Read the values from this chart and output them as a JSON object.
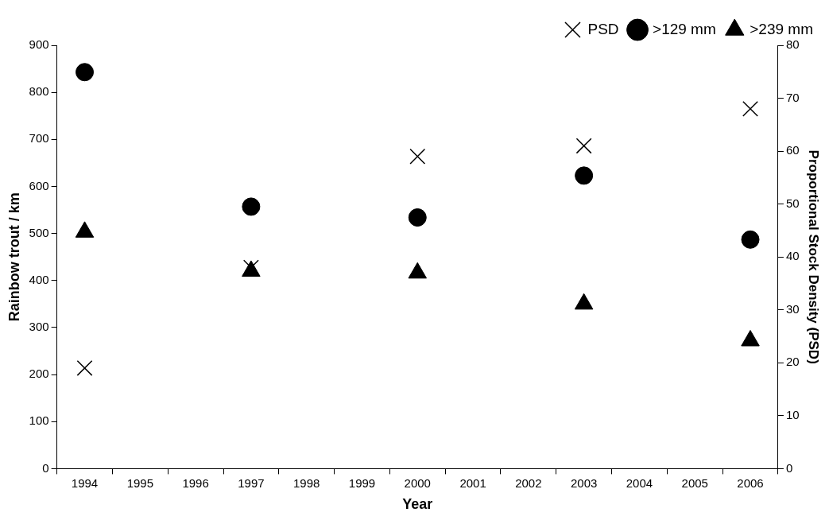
{
  "chart_data": {
    "type": "scatter",
    "xlabel": "Year",
    "ylabel": "Rainbow trout / km",
    "y2label": "Proportional Stock Density (PSD)",
    "categories": [
      "1994",
      "1995",
      "1996",
      "1997",
      "1998",
      "1999",
      "2000",
      "2001",
      "2002",
      "2003",
      "2004",
      "2005",
      "2006"
    ],
    "series": [
      {
        "name": ">129 mm",
        "color": "#000000",
        "marker": "circle",
        "values": [
          843,
          null,
          null,
          557,
          null,
          null,
          534,
          null,
          null,
          623,
          null,
          null,
          487
        ]
      },
      {
        "name": ">239 mm",
        "color": "#000000",
        "marker": "triangle",
        "values": [
          503,
          null,
          null,
          420,
          null,
          null,
          416,
          null,
          null,
          350,
          null,
          null,
          272
        ]
      },
      {
        "name": "PSD",
        "color": "#000000",
        "marker": "cross",
        "axis": "y2",
        "values": [
          19,
          null,
          null,
          38,
          null,
          null,
          59,
          null,
          null,
          61,
          null,
          null,
          68
        ]
      }
    ],
    "ylim": [
      0,
      900
    ],
    "yticks": [
      0,
      100,
      200,
      300,
      400,
      500,
      600,
      700,
      800,
      900
    ],
    "y2lim": [
      0,
      80
    ],
    "y2ticks": [
      0,
      10,
      20,
      30,
      40,
      50,
      60,
      70,
      80
    ],
    "grid": false,
    "legend": "top right"
  }
}
